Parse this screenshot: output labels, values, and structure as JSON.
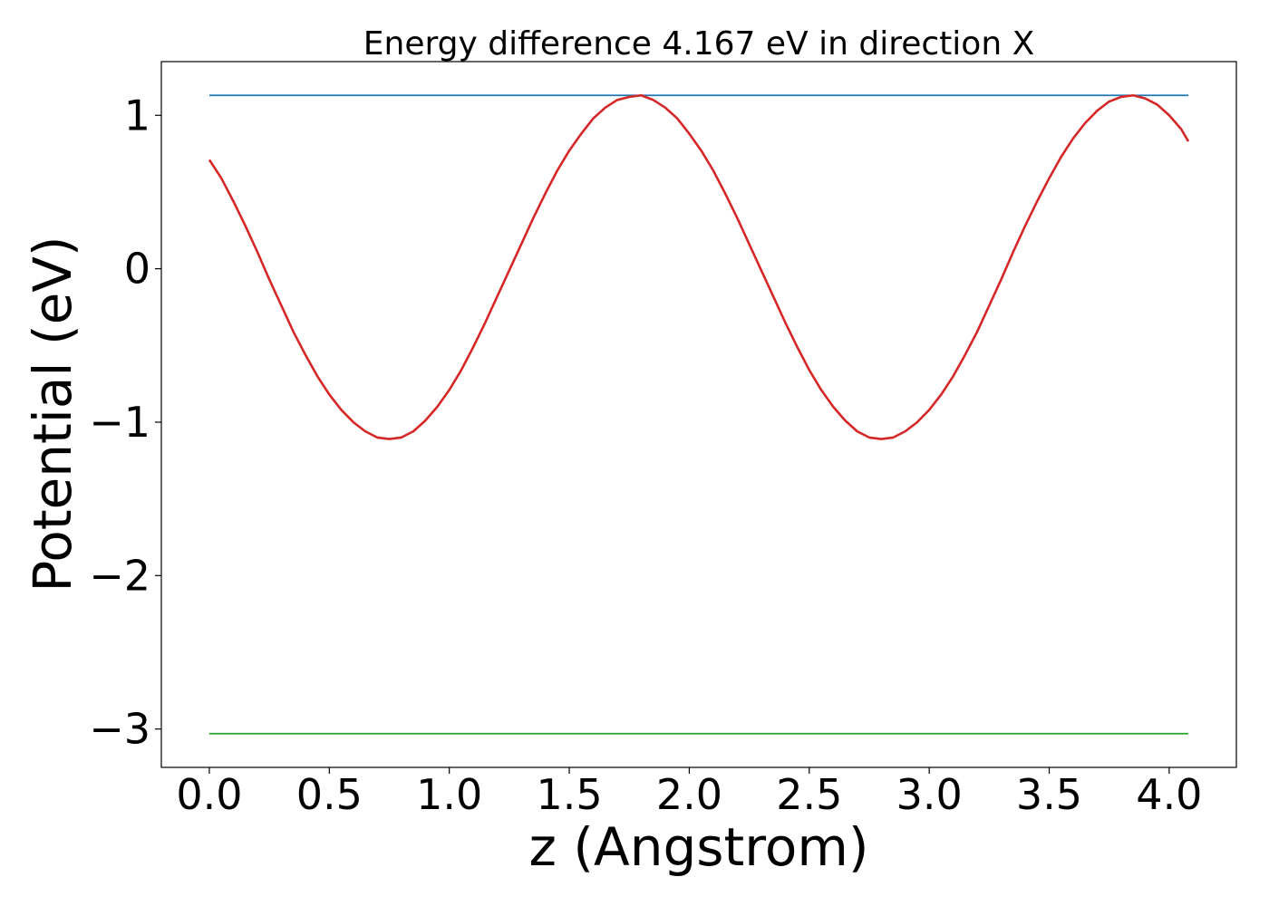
{
  "chart_data": {
    "type": "line",
    "title": "Energy difference 4.167 eV in direction X",
    "xlabel": "z (Angstrom)",
    "ylabel": "Potential (eV)",
    "xlim": [
      -0.2,
      4.28
    ],
    "ylim": [
      -3.25,
      1.35
    ],
    "xticks": [
      0.0,
      0.5,
      1.0,
      1.5,
      2.0,
      2.5,
      3.0,
      3.5,
      4.0
    ],
    "xtick_labels": [
      "0.0",
      "0.5",
      "1.0",
      "1.5",
      "2.0",
      "2.5",
      "3.0",
      "3.5",
      "4.0"
    ],
    "yticks": [
      1,
      0,
      -1,
      -2,
      -3
    ],
    "ytick_labels": [
      "1",
      "0",
      "−1",
      "−2",
      "−3"
    ],
    "grid": false,
    "legend": false,
    "series": [
      {
        "color": "#1f77b4",
        "x": [
          0.0,
          4.08
        ],
        "y": [
          1.13,
          1.13
        ]
      },
      {
        "color": "#d62728",
        "x": [
          0.0,
          0.05,
          0.1,
          0.15,
          0.2,
          0.25,
          0.3,
          0.35,
          0.4,
          0.45,
          0.5,
          0.55,
          0.6,
          0.65,
          0.7,
          0.75,
          0.8,
          0.85,
          0.9,
          0.95,
          1.0,
          1.05,
          1.1,
          1.15,
          1.2,
          1.25,
          1.3,
          1.35,
          1.4,
          1.45,
          1.5,
          1.55,
          1.6,
          1.65,
          1.7,
          1.75,
          1.8,
          1.85,
          1.9,
          1.95,
          2.0,
          2.05,
          2.1,
          2.15,
          2.2,
          2.25,
          2.3,
          2.35,
          2.4,
          2.45,
          2.5,
          2.55,
          2.6,
          2.65,
          2.7,
          2.75,
          2.8,
          2.85,
          2.9,
          2.95,
          3.0,
          3.05,
          3.1,
          3.15,
          3.2,
          3.25,
          3.3,
          3.35,
          3.4,
          3.45,
          3.5,
          3.55,
          3.6,
          3.65,
          3.7,
          3.75,
          3.8,
          3.85,
          3.9,
          3.95,
          4.0,
          4.05,
          4.08
        ],
        "y": [
          0.71,
          0.59,
          0.44,
          0.28,
          0.11,
          -0.07,
          -0.24,
          -0.41,
          -0.56,
          -0.7,
          -0.82,
          -0.92,
          -1.0,
          -1.06,
          -1.1,
          -1.11,
          -1.1,
          -1.06,
          -0.99,
          -0.9,
          -0.79,
          -0.66,
          -0.51,
          -0.35,
          -0.18,
          -0.01,
          0.16,
          0.33,
          0.49,
          0.64,
          0.77,
          0.88,
          0.98,
          1.05,
          1.1,
          1.12,
          1.13,
          1.1,
          1.05,
          0.98,
          0.88,
          0.77,
          0.64,
          0.49,
          0.33,
          0.16,
          -0.01,
          -0.18,
          -0.35,
          -0.51,
          -0.66,
          -0.79,
          -0.9,
          -0.99,
          -1.06,
          -1.1,
          -1.11,
          -1.1,
          -1.06,
          -1.0,
          -0.92,
          -0.82,
          -0.7,
          -0.56,
          -0.41,
          -0.24,
          -0.07,
          0.11,
          0.28,
          0.44,
          0.59,
          0.73,
          0.85,
          0.95,
          1.03,
          1.09,
          1.12,
          1.13,
          1.11,
          1.07,
          1.0,
          0.91,
          0.83
        ]
      },
      {
        "color": "#2ca02c",
        "x": [
          0.0,
          4.08
        ],
        "y": [
          -3.03,
          -3.03
        ]
      }
    ]
  }
}
